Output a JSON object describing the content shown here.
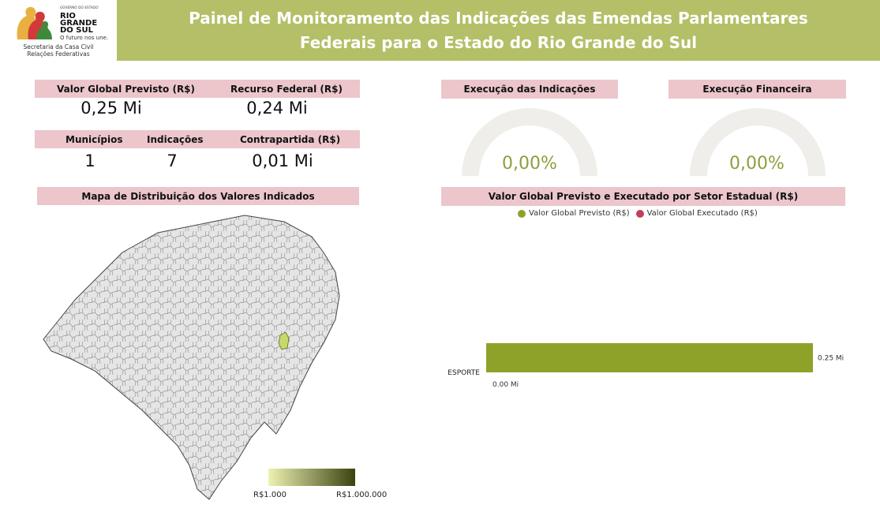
{
  "header": {
    "logo_small": "GOVERNO DO ESTADO",
    "logo_name_1": "RIO",
    "logo_name_2": "GRANDE",
    "logo_name_3": "DO SUL",
    "logo_tag": "O futuro nos une.",
    "logo_sec_1": "Secretaria da Casa Civil",
    "logo_sec_2": "Relações Federativas",
    "title_line1": "Painel de Monitoramento das Indicações das Emendas Parlamentares",
    "title_line2": "Federais para o Estado do Rio Grande do Sul"
  },
  "kpis": {
    "valor_global_label": "Valor Global Previsto (R$)",
    "valor_global_value": "0,25 Mi",
    "recurso_federal_label": "Recurso Federal (R$)",
    "recurso_federal_value": "0,24 Mi",
    "municipios_label": "Municípios",
    "municipios_value": "1",
    "indicacoes_label": "Indicações",
    "indicacoes_value": "7",
    "contrapartida_label": "Contrapartida (R$)",
    "contrapartida_value": "0,01 Mi"
  },
  "gauges": {
    "execucao_indicacoes_label": "Execução das Indicações",
    "execucao_indicacoes_value": "0,00%",
    "execucao_indicacoes_fraction": 0,
    "execucao_financeira_label": "Execução Financeira",
    "execucao_financeira_value": "0,00%",
    "execucao_financeira_fraction": 0
  },
  "map": {
    "title": "Mapa de Distribuição dos Valores Indicados",
    "scale_min": "R$1.000",
    "scale_max": "R$1.000.000",
    "scale_color_low": "#eef3b2",
    "scale_color_high": "#3b4210",
    "highlight_color": "#c6d96a",
    "base_color": "#e5e5e5"
  },
  "colors": {
    "header_green": "#b4bf67",
    "strip_pink": "#ecc6cb",
    "bar_green": "#8ea22a",
    "executado_red": "#c0405a"
  },
  "chart_data": {
    "type": "bar",
    "title": "Valor Global Previsto e Executado por Setor Estadual (R$)",
    "orientation": "horizontal",
    "categories": [
      "ESPORTE"
    ],
    "series": [
      {
        "name": "Valor Global Previsto (R$)",
        "values": [
          0.25
        ],
        "labels": [
          "0.25 Mi"
        ],
        "color": "#8ea22a"
      },
      {
        "name": "Valor Global Executado (R$)",
        "values": [
          0.0
        ],
        "labels": [
          "0.00 Mi"
        ],
        "color": "#c0405a"
      }
    ],
    "xlim": [
      0,
      0.25
    ],
    "legend": "top",
    "grid": false
  }
}
